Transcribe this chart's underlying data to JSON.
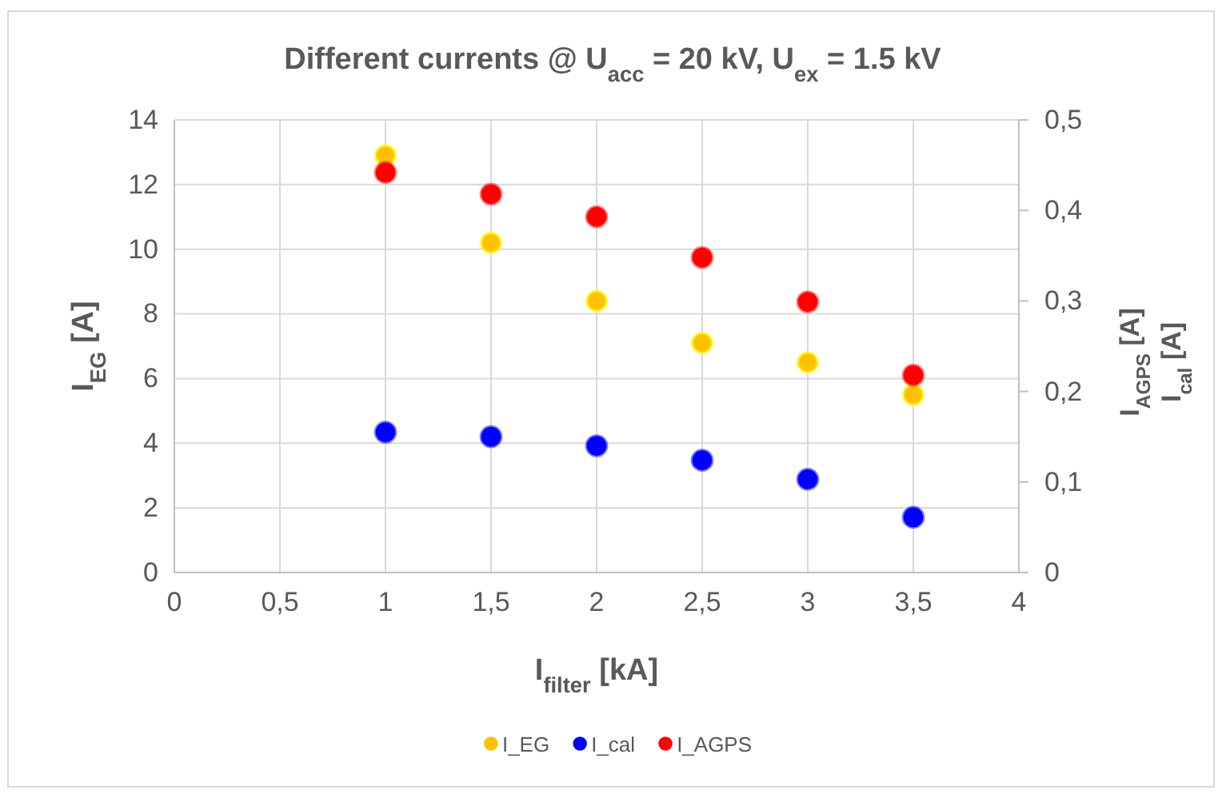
{
  "chart_data": {
    "type": "scatter",
    "title": "Different currents @ U$_{acc}$ = 20 kV, U$_{ex}$ = 1.5 kV",
    "xlabel": "I$_{filter}$ [kA]",
    "ylabel": "I$_{EG}$ [A]",
    "y2label": "I$_{AGPS}$ [A]",
    "annotations": [
      "I$_{cal}$ [A]"
    ],
    "x": [
      1,
      1.5,
      2,
      2.5,
      3,
      3.5
    ],
    "series": [
      {
        "name": "I_EG",
        "color": "#ffc000",
        "values": [
          12.9,
          10.2,
          8.4,
          7.1,
          6.5,
          5.5
        ]
      },
      {
        "name": "I_cal",
        "color": "#0000ff",
        "axis": "y2",
        "values": [
          0.155,
          0.15,
          0.14,
          0.124,
          0.103,
          0.061
        ]
      },
      {
        "name": "I_AGPS",
        "color": "#ff0000",
        "axis": "y2",
        "values": [
          0.442,
          0.418,
          0.393,
          0.348,
          0.299,
          0.218
        ]
      }
    ],
    "xlim": [
      0,
      4
    ],
    "xticks": [
      0,
      {
        "value": 0.5,
        "label": "0,5"
      },
      1,
      {
        "value": 1.5,
        "label": "1,5"
      },
      2,
      {
        "value": 2.5,
        "label": "2,5"
      },
      3,
      {
        "value": 3.5,
        "label": "3,5"
      },
      4
    ],
    "ylim": [
      0,
      14
    ],
    "yticks": [
      0,
      2,
      4,
      6,
      8,
      10,
      12,
      14
    ],
    "y2lim": [
      0,
      0.5
    ],
    "y2ticks": [
      0,
      {
        "value": 0.1,
        "label": "0,1"
      },
      {
        "value": 0.2,
        "label": "0,2"
      },
      {
        "value": 0.3,
        "label": "0,3"
      },
      {
        "value": 0.4,
        "label": "0,4"
      },
      {
        "value": 0.5,
        "label": "0,5"
      }
    ],
    "grid": true,
    "legend": "bottom",
    "marker": "circle"
  }
}
